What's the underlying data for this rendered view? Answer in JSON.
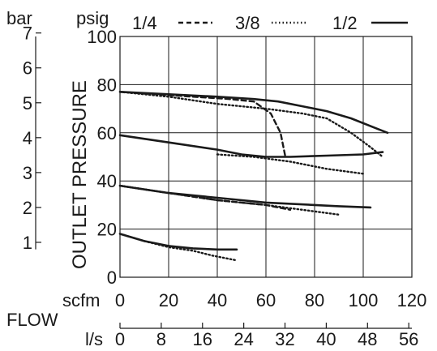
{
  "chart_data": {
    "type": "line",
    "ylabel": "OUTLET PRESSURE",
    "flow_label": "FLOW",
    "units": {
      "bar": "bar",
      "psig": "psig",
      "scfm": "scfm",
      "ls": "l/s"
    },
    "x_scfm_ticks": [
      "0",
      "20",
      "40",
      "60",
      "80",
      "100",
      "120"
    ],
    "x_ls_ticks": [
      "0",
      "8",
      "16",
      "24",
      "32",
      "40",
      "48",
      "56"
    ],
    "y_psig_ticks": [
      "0",
      "20",
      "40",
      "60",
      "80",
      "100"
    ],
    "y_bar_ticks": [
      "1",
      "2",
      "3",
      "4",
      "5",
      "6",
      "7"
    ],
    "xlim_scfm": [
      0,
      120
    ],
    "xlim_ls": [
      0,
      56.6
    ],
    "ylim_psig": [
      0,
      100
    ],
    "ylim_bar": [
      0,
      6.9
    ],
    "grid": true,
    "legend_position": "top",
    "legend": [
      {
        "name": "1/4",
        "style": "dashed"
      },
      {
        "name": "3/8",
        "style": "dotted"
      },
      {
        "name": "1/2",
        "style": "solid"
      }
    ],
    "series": [
      {
        "name": "1/4",
        "style": "dashed",
        "points": [
          [
            0,
            77
          ],
          [
            15,
            76
          ],
          [
            30,
            75
          ],
          [
            45,
            74
          ],
          [
            55,
            73
          ],
          [
            62,
            68
          ],
          [
            66,
            60
          ],
          [
            68,
            50
          ]
        ]
      },
      {
        "name": "1/4",
        "style": "dashed",
        "points": [
          [
            0,
            38
          ],
          [
            20,
            35
          ],
          [
            40,
            32
          ],
          [
            60,
            30
          ],
          [
            70,
            28
          ]
        ]
      },
      {
        "name": "3/8",
        "style": "dotted",
        "points": [
          [
            0,
            77
          ],
          [
            20,
            75
          ],
          [
            40,
            72
          ],
          [
            60,
            70
          ],
          [
            75,
            68
          ],
          [
            85,
            66
          ],
          [
            95,
            60
          ],
          [
            103,
            54
          ],
          [
            108,
            50
          ]
        ]
      },
      {
        "name": "3/8",
        "style": "dotted",
        "points": [
          [
            40,
            51
          ],
          [
            55,
            50
          ],
          [
            70,
            48
          ],
          [
            85,
            45
          ],
          [
            100,
            43
          ]
        ]
      },
      {
        "name": "3/8",
        "style": "dotted",
        "points": [
          [
            0,
            38
          ],
          [
            20,
            35
          ],
          [
            40,
            32
          ],
          [
            60,
            30
          ],
          [
            75,
            28
          ],
          [
            90,
            26
          ]
        ]
      },
      {
        "name": "3/8",
        "style": "dotted",
        "points": [
          [
            0,
            18
          ],
          [
            10,
            15
          ],
          [
            20,
            12.5
          ],
          [
            30,
            11
          ],
          [
            38,
            9
          ],
          [
            48,
            7
          ]
        ]
      },
      {
        "name": "1/2",
        "style": "solid",
        "points": [
          [
            0,
            77
          ],
          [
            20,
            76
          ],
          [
            40,
            75
          ],
          [
            55,
            74
          ],
          [
            65,
            73
          ],
          [
            75,
            71
          ],
          [
            85,
            69
          ],
          [
            95,
            66
          ],
          [
            105,
            62
          ],
          [
            110,
            60
          ]
        ]
      },
      {
        "name": "1/2",
        "style": "solid",
        "points": [
          [
            0,
            59
          ],
          [
            20,
            56
          ],
          [
            40,
            53
          ],
          [
            50,
            51
          ],
          [
            60,
            50
          ],
          [
            70,
            50
          ],
          [
            85,
            50.5
          ],
          [
            100,
            51
          ],
          [
            108,
            52
          ]
        ]
      },
      {
        "name": "1/2",
        "style": "solid",
        "points": [
          [
            0,
            38
          ],
          [
            20,
            35
          ],
          [
            40,
            33
          ],
          [
            60,
            31
          ],
          [
            80,
            30
          ],
          [
            90,
            29.5
          ],
          [
            103,
            29
          ]
        ]
      },
      {
        "name": "1/2",
        "style": "solid",
        "points": [
          [
            0,
            18
          ],
          [
            10,
            15
          ],
          [
            20,
            13
          ],
          [
            30,
            12
          ],
          [
            40,
            11.5
          ],
          [
            48,
            11.5
          ]
        ]
      }
    ]
  }
}
